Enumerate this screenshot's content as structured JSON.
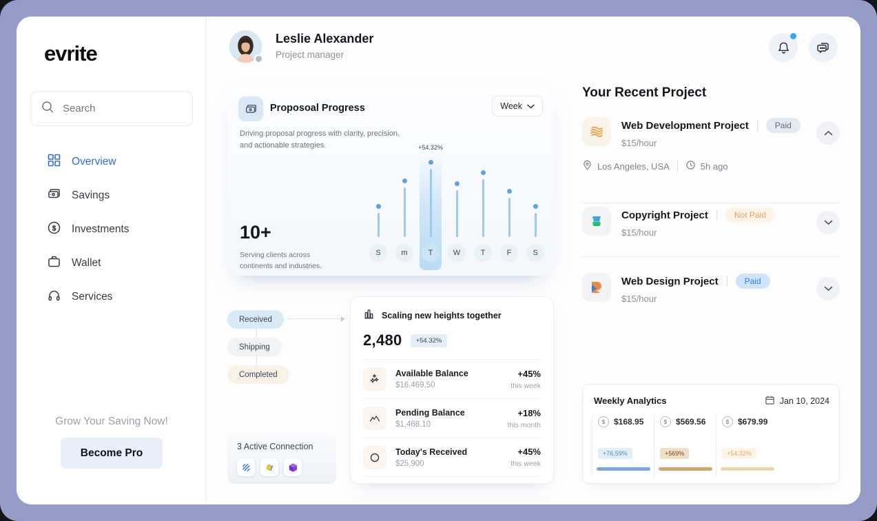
{
  "app": {
    "logo": "evrite",
    "frame_color": "#969cc8",
    "accent_color": "#2e6be0",
    "notification_dot": "#2fa8f5"
  },
  "sidebar": {
    "search_placeholder": "Search",
    "items": [
      {
        "label": "Overview",
        "active": true
      },
      {
        "label": "Savings"
      },
      {
        "label": "Investments"
      },
      {
        "label": "Wallet"
      },
      {
        "label": "Services"
      }
    ],
    "promo": {
      "text": "Grow Your Saving Now!",
      "button": "Become Pro"
    }
  },
  "header": {
    "name": "Leslie Alexander",
    "role": "Project manager"
  },
  "proposal": {
    "title": "Proposoal Progress",
    "description": "Driving proposal progress with clarity, precision, and actionable strategies.",
    "period": "Week",
    "stat": "10+",
    "stat_caption": "Serving clients across continents and industries."
  },
  "chart_data": {
    "type": "bar",
    "title": "Proposoal Progress",
    "categories": [
      "S",
      "m",
      "T",
      "W",
      "T",
      "F",
      "S"
    ],
    "values": [
      35,
      72,
      99,
      68,
      84,
      57,
      35
    ],
    "unit": "relative-height",
    "highlight_index": 2,
    "highlight_label": "+54.32%",
    "xlabel": "day of week",
    "ylabel": "",
    "grid": false,
    "legend": false
  },
  "flow_tags": {
    "items": [
      {
        "label": "Received",
        "bg": "#d8eaf7"
      },
      {
        "label": "Shipping",
        "bg": "#f1f3f6"
      },
      {
        "label": "Completed",
        "bg": "#fbf1e6"
      }
    ]
  },
  "connections": {
    "label": "3 Active Connection"
  },
  "balance_card": {
    "title": "Scaling new heights together",
    "total": "2,480",
    "change_badge": "+54.32%",
    "rows": [
      {
        "label": "Available Balance",
        "amount": "$16,469.50",
        "change": "+45%",
        "period": "this week"
      },
      {
        "label": "Pending Balance",
        "amount": "$1,468.10",
        "change": "+18%",
        "period": "this month"
      },
      {
        "label": "Today's Received",
        "amount": "$25,900",
        "change": "+45%",
        "period": "this week"
      }
    ]
  },
  "projects": {
    "heading": "Your Recent Project",
    "items": [
      {
        "title": "Web Development Project",
        "status": "Paid",
        "status_bg": "#e2eaf2",
        "status_color": "#5f6b76",
        "rate": "$15/hour",
        "location": "Los Angeles, USA",
        "time": "5h ago",
        "expanded": true
      },
      {
        "title": "Copyright Project",
        "status": "Not Paid",
        "status_bg": "#fdf3e7",
        "status_color": "#e2a368",
        "rate": "$15/hour",
        "expanded": false
      },
      {
        "title": "Web Design Project",
        "status": "Paid",
        "status_bg": "#cfe3f9",
        "status_color": "#2f80ed",
        "rate": "$15/hour",
        "expanded": false
      }
    ]
  },
  "analytics": {
    "title": "Weekly Analytics",
    "date": "Jan 10, 2024",
    "columns": [
      {
        "amount": "$168.95",
        "change": "+76.59%",
        "accent": "#7ba7dc",
        "badge_bg": "#e4eef9",
        "badge_color": "#5585cf"
      },
      {
        "amount": "$569.56",
        "change": "+569%",
        "accent": "#cfa96f",
        "badge_bg": "#ece0c7",
        "badge_color": "#83452b"
      },
      {
        "amount": "$679.99",
        "change": "+54.32%",
        "accent": "#ecd4ab",
        "badge_bg": "#fdf4e4",
        "badge_color": "#e2a860"
      }
    ]
  }
}
